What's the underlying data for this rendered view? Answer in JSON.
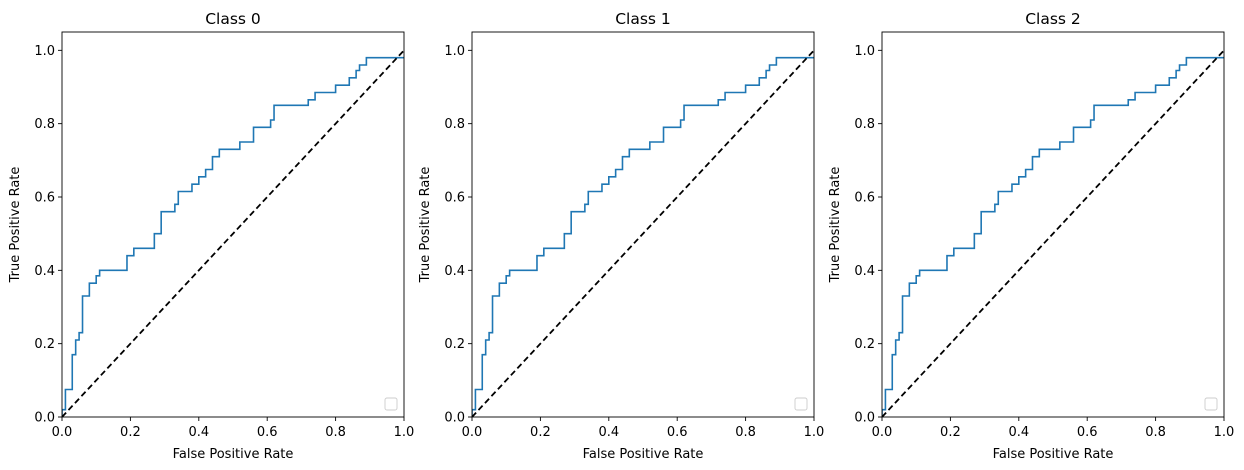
{
  "chart_data": [
    {
      "type": "line",
      "title": "Class 0",
      "xlabel": "False Positive Rate",
      "ylabel": "True Positive Rate",
      "xlim": [
        0.0,
        1.0
      ],
      "ylim": [
        0.0,
        1.05
      ],
      "xticks": [
        "0.0",
        "0.2",
        "0.4",
        "0.6",
        "0.8",
        "1.0"
      ],
      "yticks": [
        "0.0",
        "0.2",
        "0.4",
        "0.6",
        "0.8",
        "1.0"
      ],
      "grid": false,
      "legend": "lower-right (empty)",
      "series": [
        {
          "color": "#1f77b4",
          "style": "solid",
          "x": [
            0.0,
            0.0,
            0.01,
            0.01,
            0.03,
            0.03,
            0.04,
            0.04,
            0.05,
            0.05,
            0.06,
            0.06,
            0.08,
            0.08,
            0.1,
            0.1,
            0.11,
            0.11,
            0.19,
            0.19,
            0.21,
            0.21,
            0.27,
            0.27,
            0.29,
            0.29,
            0.33,
            0.33,
            0.34,
            0.34,
            0.38,
            0.38,
            0.4,
            0.4,
            0.42,
            0.42,
            0.44,
            0.44,
            0.46,
            0.46,
            0.52,
            0.52,
            0.56,
            0.56,
            0.61,
            0.61,
            0.62,
            0.62,
            0.72,
            0.72,
            0.74,
            0.74,
            0.8,
            0.8,
            0.84,
            0.84,
            0.86,
            0.86,
            0.87,
            0.87,
            0.89,
            0.89,
            0.9,
            0.9,
            1.0
          ],
          "y": [
            0.0,
            0.02,
            0.02,
            0.075,
            0.075,
            0.17,
            0.17,
            0.21,
            0.21,
            0.23,
            0.23,
            0.33,
            0.33,
            0.365,
            0.365,
            0.385,
            0.385,
            0.4,
            0.4,
            0.44,
            0.44,
            0.46,
            0.46,
            0.5,
            0.5,
            0.56,
            0.56,
            0.58,
            0.58,
            0.615,
            0.615,
            0.635,
            0.635,
            0.655,
            0.655,
            0.675,
            0.675,
            0.71,
            0.71,
            0.73,
            0.73,
            0.75,
            0.75,
            0.79,
            0.79,
            0.81,
            0.81,
            0.85,
            0.85,
            0.865,
            0.865,
            0.885,
            0.885,
            0.905,
            0.905,
            0.925,
            0.925,
            0.945,
            0.945,
            0.96,
            0.96,
            0.98,
            0.98,
            0.98,
            0.98
          ]
        },
        {
          "color": "#000000",
          "style": "dashed",
          "x": [
            0.0,
            1.0
          ],
          "y": [
            0.0,
            1.0
          ]
        }
      ]
    },
    {
      "type": "line",
      "title": "Class 1",
      "xlabel": "False Positive Rate",
      "ylabel": "True Positive Rate",
      "xlim": [
        0.0,
        1.0
      ],
      "ylim": [
        0.0,
        1.05
      ],
      "xticks": [
        "0.0",
        "0.2",
        "0.4",
        "0.6",
        "0.8",
        "1.0"
      ],
      "yticks": [
        "0.0",
        "0.2",
        "0.4",
        "0.6",
        "0.8",
        "1.0"
      ],
      "grid": false,
      "legend": "lower-right (empty)",
      "series": [
        {
          "color": "#1f77b4",
          "style": "solid",
          "x": [
            0.0,
            0.0,
            0.01,
            0.01,
            0.03,
            0.03,
            0.04,
            0.04,
            0.05,
            0.05,
            0.06,
            0.06,
            0.08,
            0.08,
            0.1,
            0.1,
            0.11,
            0.11,
            0.19,
            0.19,
            0.21,
            0.21,
            0.27,
            0.27,
            0.29,
            0.29,
            0.33,
            0.33,
            0.34,
            0.34,
            0.38,
            0.38,
            0.4,
            0.4,
            0.42,
            0.42,
            0.44,
            0.44,
            0.46,
            0.46,
            0.52,
            0.52,
            0.56,
            0.56,
            0.61,
            0.61,
            0.62,
            0.62,
            0.72,
            0.72,
            0.74,
            0.74,
            0.8,
            0.8,
            0.84,
            0.84,
            0.86,
            0.86,
            0.87,
            0.87,
            0.89,
            0.89,
            0.9,
            0.9,
            1.0
          ],
          "y": [
            0.0,
            0.02,
            0.02,
            0.075,
            0.075,
            0.17,
            0.17,
            0.21,
            0.21,
            0.23,
            0.23,
            0.33,
            0.33,
            0.365,
            0.365,
            0.385,
            0.385,
            0.4,
            0.4,
            0.44,
            0.44,
            0.46,
            0.46,
            0.5,
            0.5,
            0.56,
            0.56,
            0.58,
            0.58,
            0.615,
            0.615,
            0.635,
            0.635,
            0.655,
            0.655,
            0.675,
            0.675,
            0.71,
            0.71,
            0.73,
            0.73,
            0.75,
            0.75,
            0.79,
            0.79,
            0.81,
            0.81,
            0.85,
            0.85,
            0.865,
            0.865,
            0.885,
            0.885,
            0.905,
            0.905,
            0.925,
            0.925,
            0.945,
            0.945,
            0.96,
            0.96,
            0.98,
            0.98,
            0.98,
            0.98
          ]
        },
        {
          "color": "#000000",
          "style": "dashed",
          "x": [
            0.0,
            1.0
          ],
          "y": [
            0.0,
            1.0
          ]
        }
      ]
    },
    {
      "type": "line",
      "title": "Class 2",
      "xlabel": "False Positive Rate",
      "ylabel": "True Positive Rate",
      "xlim": [
        0.0,
        1.0
      ],
      "ylim": [
        0.0,
        1.05
      ],
      "xticks": [
        "0.0",
        "0.2",
        "0.4",
        "0.6",
        "0.8",
        "1.0"
      ],
      "yticks": [
        "0.0",
        "0.2",
        "0.4",
        "0.6",
        "0.8",
        "1.0"
      ],
      "grid": false,
      "legend": "lower-right (empty)",
      "series": [
        {
          "color": "#1f77b4",
          "style": "solid",
          "x": [
            0.0,
            0.0,
            0.01,
            0.01,
            0.03,
            0.03,
            0.04,
            0.04,
            0.05,
            0.05,
            0.06,
            0.06,
            0.08,
            0.08,
            0.1,
            0.1,
            0.11,
            0.11,
            0.19,
            0.19,
            0.21,
            0.21,
            0.27,
            0.27,
            0.29,
            0.29,
            0.33,
            0.33,
            0.34,
            0.34,
            0.38,
            0.38,
            0.4,
            0.4,
            0.42,
            0.42,
            0.44,
            0.44,
            0.46,
            0.46,
            0.52,
            0.52,
            0.56,
            0.56,
            0.61,
            0.61,
            0.62,
            0.62,
            0.72,
            0.72,
            0.74,
            0.74,
            0.8,
            0.8,
            0.84,
            0.84,
            0.86,
            0.86,
            0.87,
            0.87,
            0.89,
            0.89,
            0.9,
            0.9,
            1.0
          ],
          "y": [
            0.0,
            0.02,
            0.02,
            0.075,
            0.075,
            0.17,
            0.17,
            0.21,
            0.21,
            0.23,
            0.23,
            0.33,
            0.33,
            0.365,
            0.365,
            0.385,
            0.385,
            0.4,
            0.4,
            0.44,
            0.44,
            0.46,
            0.46,
            0.5,
            0.5,
            0.56,
            0.56,
            0.58,
            0.58,
            0.615,
            0.615,
            0.635,
            0.635,
            0.655,
            0.655,
            0.675,
            0.675,
            0.71,
            0.71,
            0.73,
            0.73,
            0.75,
            0.75,
            0.79,
            0.79,
            0.81,
            0.81,
            0.85,
            0.85,
            0.865,
            0.865,
            0.885,
            0.885,
            0.905,
            0.905,
            0.925,
            0.925,
            0.945,
            0.945,
            0.96,
            0.96,
            0.98,
            0.98,
            0.98,
            0.98
          ]
        },
        {
          "color": "#000000",
          "style": "dashed",
          "x": [
            0.0,
            1.0
          ],
          "y": [
            0.0,
            1.0
          ]
        }
      ]
    }
  ]
}
